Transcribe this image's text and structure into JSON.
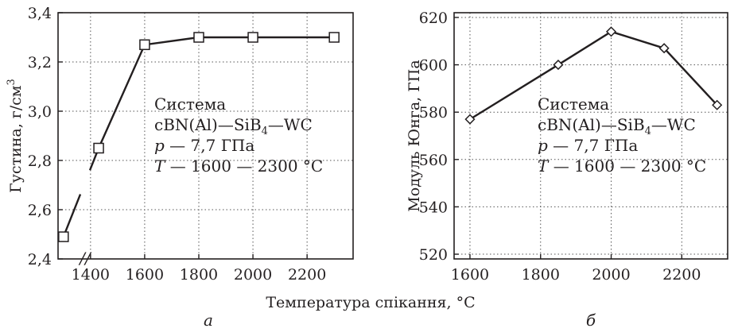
{
  "chart_data": [
    {
      "id": "a",
      "type": "line",
      "panel_label": "а",
      "ylabel": "Густина, г/см³",
      "ylabel_main": "Густина, г/см",
      "ylabel_sup": "3",
      "xlabel": "",
      "xlim": [
        1280,
        2370
      ],
      "ylim": [
        2.4,
        3.4
      ],
      "x_ticks": [
        1400,
        1600,
        1800,
        2000,
        2200
      ],
      "y_ticks": [
        "2,4",
        "2,6",
        "2,8",
        "3,0",
        "3,2",
        "3,4"
      ],
      "y_tick_values": [
        2.4,
        2.6,
        2.8,
        3.0,
        3.2,
        3.4
      ],
      "axis_break": "//",
      "marker": "square",
      "grid": true,
      "x": [
        1300,
        1430,
        1600,
        1800,
        2000,
        2300
      ],
      "values": [
        2.49,
        2.85,
        3.27,
        3.3,
        3.3,
        3.3
      ],
      "annotation": {
        "line1": "Система",
        "line2_pre": "cBN(Al)—SiB",
        "line2_sub": "4",
        "line2_post": "—WC",
        "line3_var": "p",
        "line3_rest": " — 7,7 ГПа",
        "line4_var": "T",
        "line4_rest": " — 1600 — 2300 °C"
      }
    },
    {
      "id": "b",
      "type": "line",
      "panel_label": "б",
      "ylabel": "Модуль Юнга, ГПа",
      "xlabel": "",
      "xlim": [
        1555,
        2330
      ],
      "ylim": [
        518,
        622
      ],
      "x_ticks": [
        1600,
        1800,
        2000,
        2200
      ],
      "y_ticks": [
        "520",
        "540",
        "560",
        "580",
        "600",
        "620"
      ],
      "y_tick_values": [
        520,
        540,
        560,
        580,
        600,
        620
      ],
      "marker": "diamond",
      "grid": true,
      "x": [
        1600,
        1850,
        2000,
        2150,
        2300
      ],
      "values": [
        577,
        600,
        614,
        607,
        583
      ],
      "annotation": {
        "line1": "Система",
        "line2_pre": "cBN(Al)—SiB",
        "line2_sub": "4",
        "line2_post": "—WC",
        "line3_var": "p",
        "line3_rest": " — 7,7 ГПа",
        "line4_var": "T",
        "line4_rest": " — 1600 — 2300 °C"
      }
    }
  ],
  "shared_xlabel": "Температура спікання, °C"
}
